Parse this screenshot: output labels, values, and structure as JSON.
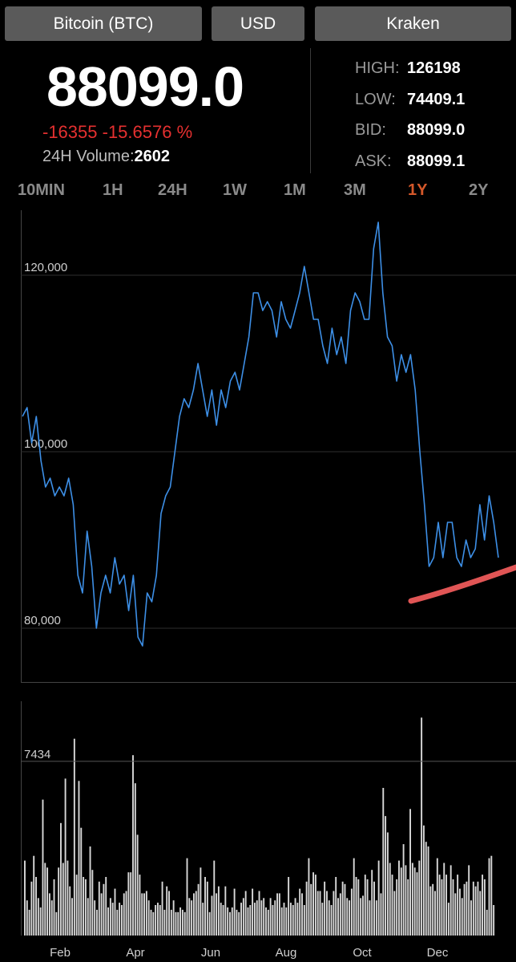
{
  "header": {
    "coin_label": "Bitcoin (BTC)",
    "fiat_label": "USD",
    "exchange_label": "Kraken"
  },
  "ticker": {
    "price": "88099.0",
    "change": "-16355 -15.6576 %",
    "volume_label": "24H Volume:",
    "volume_value": "2602"
  },
  "stats": [
    {
      "key": "HIGH:",
      "value": "126198"
    },
    {
      "key": "LOW:",
      "value": "74409.1"
    },
    {
      "key": "BID:",
      "value": "88099.0"
    },
    {
      "key": "ASK:",
      "value": "88099.1"
    }
  ],
  "timeframes": [
    "10MIN",
    "1H",
    "24H",
    "1W",
    "1M",
    "3M",
    "1Y",
    "2Y"
  ],
  "active_timeframe": "1Y",
  "colors": {
    "accent": "#d4582a",
    "negative": "#e53030",
    "line": "#3d8fe6",
    "volume_bar": "#d8d8d8",
    "highlight_stroke": "#e05555"
  },
  "chart_data": [
    {
      "type": "line",
      "y_ticks": [
        "120,000",
        "100,000",
        "80,000"
      ],
      "y_tick_values": [
        120000,
        100000,
        80000
      ],
      "ylim": [
        76000,
        125000
      ],
      "grid": true,
      "annotation": "red highlight stroke under recent lows",
      "series": [
        {
          "values": [
            104000,
            105000,
            101000,
            104000,
            99000,
            96000,
            97000,
            95000,
            96000,
            95000,
            97000,
            94000,
            86000,
            84000,
            91000,
            87000,
            80000,
            84000,
            86000,
            84000,
            88000,
            85000,
            86000,
            82000,
            86000,
            79000,
            78000,
            84000,
            83000,
            86000,
            93000,
            95000,
            96000,
            100000,
            104000,
            106000,
            105000,
            107000,
            110000,
            107000,
            104000,
            107000,
            103000,
            107000,
            105000,
            108000,
            109000,
            107000,
            110000,
            113000,
            118000,
            118000,
            116000,
            117000,
            116000,
            113000,
            117000,
            115000,
            114000,
            116000,
            118000,
            121000,
            118000,
            115000,
            115000,
            112000,
            110000,
            114000,
            111000,
            113000,
            110000,
            116000,
            118000,
            117000,
            115000,
            115000,
            123000,
            126000,
            118000,
            113000,
            112000,
            108000,
            111000,
            109000,
            111000,
            107000,
            100000,
            94000,
            87000,
            88000,
            92000,
            88000,
            92000,
            92000,
            88000,
            87000,
            90000,
            88000,
            89000,
            94000,
            90000,
            95000,
            92000,
            88000
          ]
        }
      ]
    },
    {
      "type": "bar",
      "y_ticks": [
        "7434"
      ],
      "y_tick_values": [
        7434
      ],
      "x_ticks": [
        "Feb",
        "Apr",
        "Jun",
        "Aug",
        "Oct",
        "Dec"
      ],
      "ylim": [
        0,
        10000
      ],
      "series": [
        {
          "values": [
            3200,
            1500,
            1100,
            2300,
            3400,
            2500,
            1600,
            1200,
            5800,
            3100,
            2900,
            1800,
            1500,
            2400,
            1000,
            2900,
            4800,
            3100,
            6700,
            3200,
            2100,
            1600,
            8400,
            2600,
            6600,
            4600,
            2500,
            2400,
            1600,
            3800,
            2800,
            1500,
            1100,
            2300,
            1800,
            2200,
            2500,
            1200,
            1600,
            1400,
            2000,
            1100,
            1400,
            1300,
            1800,
            1900,
            2700,
            2700,
            7700,
            6500,
            4300,
            2600,
            1800,
            1800,
            1900,
            1500,
            1100,
            1000,
            1300,
            1400,
            1300,
            2300,
            1100,
            2100,
            1900,
            1100,
            1500,
            1000,
            1000,
            1200,
            1100,
            1000,
            3300,
            1600,
            1500,
            1800,
            1900,
            2200,
            2900,
            1400,
            2500,
            2300,
            1000,
            1700,
            3200,
            1800,
            2100,
            1400,
            1300,
            2100,
            1200,
            1000,
            1200,
            2000,
            1100,
            1000,
            1400,
            1600,
            1900,
            1200,
            1300,
            2000,
            1400,
            1500,
            1900,
            1500,
            1600,
            1200,
            1100,
            1600,
            1300,
            1500,
            1800,
            1800,
            1200,
            1400,
            1200,
            2500,
            1400,
            1300,
            1600,
            1400,
            2000,
            1800,
            1300,
            2300,
            3300,
            2200,
            2700,
            2600,
            1900,
            1900,
            1400,
            2300,
            1900,
            1500,
            1300,
            1900,
            2500,
            1600,
            1800,
            2300,
            2200,
            1600,
            1500,
            2000,
            3300,
            2500,
            2400,
            1600,
            1700,
            2600,
            2400,
            1500,
            2800,
            2300,
            1500,
            3200,
            1800,
            6300,
            5100,
            4400,
            3100,
            2600,
            1900,
            2400,
            3200,
            2900,
            3900,
            3000,
            2400,
            5400,
            3100,
            2900,
            2700,
            3200,
            9300,
            4700,
            4000,
            3800,
            2100,
            2200,
            1900,
            3300,
            2600,
            2400,
            3100,
            2600,
            1400,
            3000,
            2400,
            1800,
            2600,
            2000,
            1600,
            2200,
            2300,
            3000,
            1500,
            2300,
            2100,
            2300,
            1900,
            2600,
            2400,
            1100,
            3300,
            3400,
            1300
          ]
        }
      ]
    }
  ]
}
